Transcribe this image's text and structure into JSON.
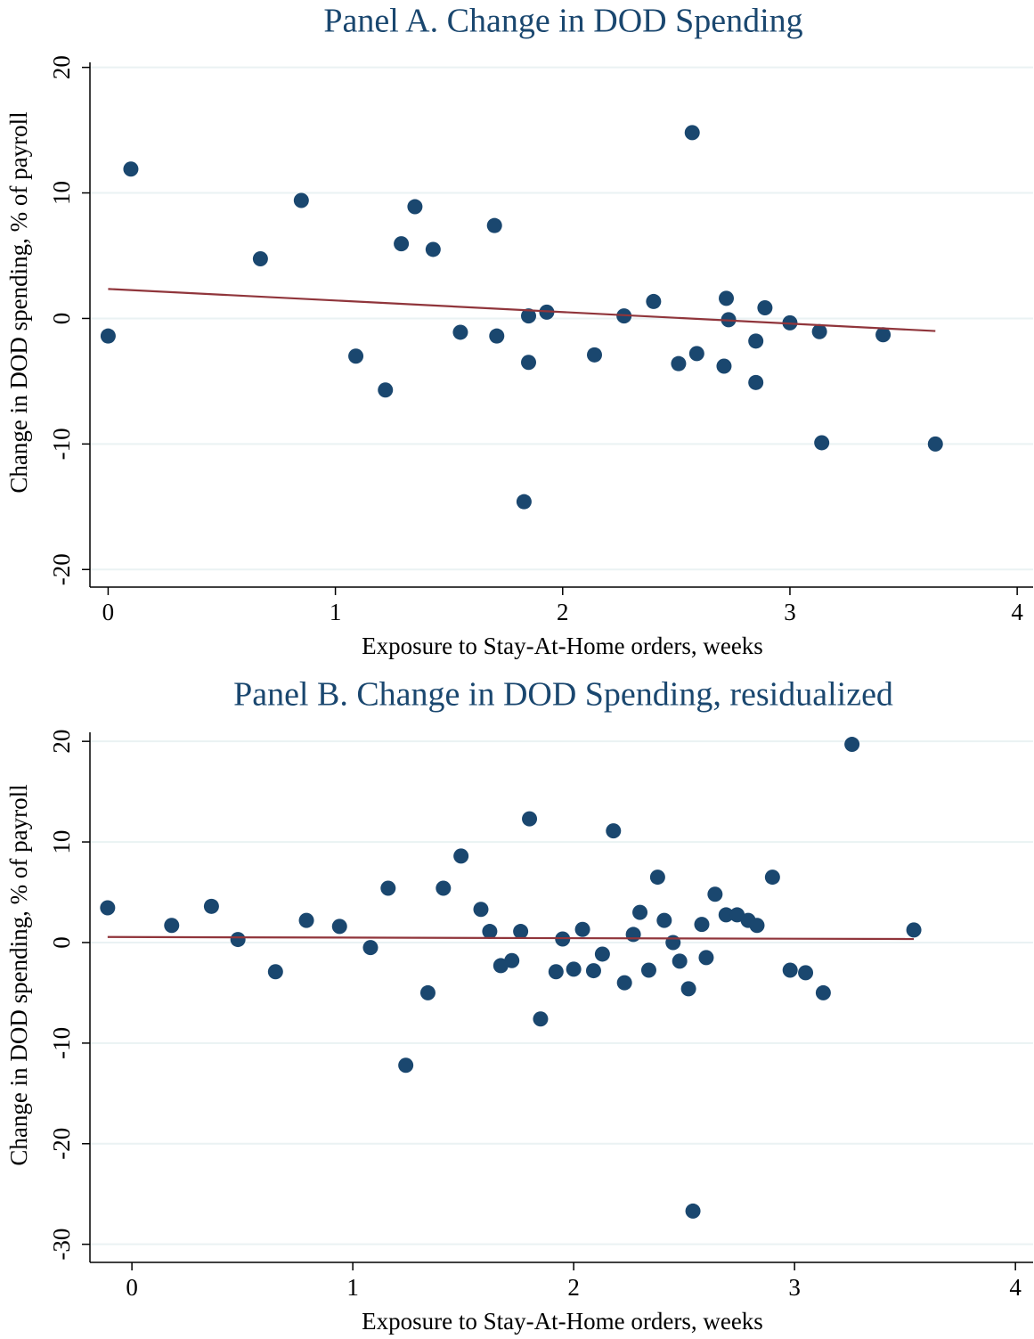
{
  "chart_data": [
    {
      "type": "scatter",
      "title": "Panel A. Change in DOD Spending",
      "x_label": "Exposure to Stay-At-Home orders, weeks",
      "y_label": "Change in DOD spending, % of payroll",
      "color": "#1a476f",
      "grid": true,
      "xlim": [
        -0.08,
        4.07
      ],
      "xticks": [
        0,
        1,
        2,
        3,
        4
      ],
      "ylim": [
        -21.4,
        20.4
      ],
      "yticks": [
        -20,
        -10,
        0,
        10,
        20
      ],
      "x": [
        0,
        0.1,
        0.67,
        0.85,
        1.09,
        1.22,
        1.29,
        1.35,
        1.43,
        1.55,
        1.7,
        1.71,
        1.83,
        1.85,
        1.85,
        1.93,
        2.14,
        2.27,
        2.4,
        2.51,
        2.57,
        2.59,
        2.71,
        2.72,
        2.73,
        2.85,
        2.85,
        2.89,
        3.0,
        3.13,
        3.14,
        3.41,
        3.64
      ],
      "values": [
        -1.4,
        11.9,
        4.75,
        9.4,
        -3.0,
        -5.7,
        5.95,
        8.9,
        5.5,
        -1.1,
        7.4,
        -1.4,
        -14.6,
        0.2,
        -3.5,
        0.5,
        -2.9,
        0.2,
        1.35,
        -3.6,
        14.8,
        -2.8,
        -3.8,
        1.6,
        -0.1,
        -1.8,
        -5.1,
        0.85,
        -0.35,
        -1.05,
        -9.9,
        -1.3,
        -10.0
      ],
      "fit": {
        "color": "#90353b",
        "x": [
          0,
          3.64
        ],
        "values": [
          2.35,
          -1.0
        ]
      }
    },
    {
      "type": "scatter",
      "title": "Panel B. Change in DOD Spending, residualized",
      "x_label": "Exposure to Stay-At-Home orders, weeks",
      "y_label": "Change in DOD spending, % of payroll",
      "color": "#1a476f",
      "grid": true,
      "xlim": [
        -0.19,
        4.08
      ],
      "xticks": [
        0,
        1,
        2,
        3,
        4
      ],
      "ylim": [
        -31.8,
        20.9
      ],
      "yticks": [
        -30,
        -20,
        -10,
        0,
        10,
        20
      ],
      "x": [
        -0.11,
        0.18,
        0.36,
        0.48,
        0.65,
        0.79,
        0.94,
        1.08,
        1.16,
        1.24,
        1.34,
        1.41,
        1.49,
        1.58,
        1.62,
        1.67,
        1.72,
        1.76,
        1.8,
        1.85,
        1.92,
        1.95,
        2.0,
        2.04,
        2.09,
        2.13,
        2.18,
        2.23,
        2.27,
        2.3,
        2.34,
        2.38,
        2.41,
        2.45,
        2.48,
        2.52,
        2.54,
        2.58,
        2.6,
        2.64,
        2.69,
        2.74,
        2.79,
        2.83,
        2.9,
        2.98,
        3.05,
        3.13,
        3.26,
        3.54
      ],
      "values": [
        3.45,
        1.7,
        3.6,
        0.3,
        -2.9,
        2.2,
        1.6,
        -0.5,
        5.4,
        -12.2,
        -5.0,
        5.4,
        8.6,
        3.3,
        1.1,
        -2.3,
        -1.8,
        1.1,
        12.3,
        -7.6,
        -2.9,
        0.35,
        -2.65,
        1.3,
        -2.8,
        -1.15,
        11.1,
        -4.0,
        0.8,
        3.0,
        -2.75,
        6.5,
        2.2,
        0.0,
        -1.85,
        -4.6,
        -26.7,
        1.8,
        -1.5,
        4.8,
        2.75,
        2.75,
        2.2,
        1.7,
        6.5,
        -2.75,
        -3.0,
        -5.0,
        19.7,
        1.25
      ],
      "fit": {
        "color": "#90353b",
        "x": [
          -0.11,
          3.54
        ],
        "values": [
          0.55,
          0.35
        ]
      }
    }
  ]
}
